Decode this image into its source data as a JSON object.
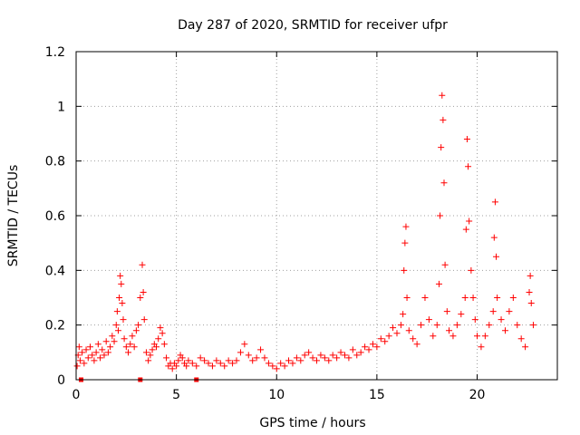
{
  "chart_data": {
    "type": "scatter",
    "title": "Day 287 of 2020, SRMTID for receiver ufpr",
    "xlabel": "GPS time / hours",
    "ylabel": "SRMTID / TECUs",
    "xlim": [
      0,
      24
    ],
    "ylim": [
      0,
      1.2
    ],
    "xticks": [
      0,
      5,
      10,
      15,
      20
    ],
    "xtick_labels": [
      "0",
      "5",
      "10",
      "15",
      "20"
    ],
    "yticks": [
      0,
      0.2,
      0.4,
      0.6,
      0.8,
      1.0,
      1.2
    ],
    "ytick_labels": [
      "0",
      "0.2",
      "0.4",
      "0.6",
      "0.8",
      "1",
      "1.2"
    ],
    "grid": true,
    "marker": "+",
    "color": "#ff0000",
    "baseline_markers": [
      {
        "x": 0.25,
        "y": 0
      },
      {
        "x": 3.2,
        "y": 0
      },
      {
        "x": 6.0,
        "y": 0
      }
    ],
    "series": [
      {
        "name": "SRMTID",
        "points": [
          [
            0.05,
            0.05
          ],
          [
            0.1,
            0.09
          ],
          [
            0.15,
            0.12
          ],
          [
            0.2,
            0.07
          ],
          [
            0.3,
            0.1
          ],
          [
            0.4,
            0.06
          ],
          [
            0.5,
            0.11
          ],
          [
            0.6,
            0.08
          ],
          [
            0.7,
            0.12
          ],
          [
            0.8,
            0.09
          ],
          [
            0.9,
            0.07
          ],
          [
            1.0,
            0.1
          ],
          [
            1.1,
            0.13
          ],
          [
            1.2,
            0.08
          ],
          [
            1.3,
            0.11
          ],
          [
            1.4,
            0.09
          ],
          [
            1.5,
            0.14
          ],
          [
            1.6,
            0.1
          ],
          [
            1.7,
            0.12
          ],
          [
            1.8,
            0.16
          ],
          [
            1.9,
            0.14
          ],
          [
            2.0,
            0.2
          ],
          [
            2.05,
            0.25
          ],
          [
            2.1,
            0.18
          ],
          [
            2.15,
            0.3
          ],
          [
            2.2,
            0.38
          ],
          [
            2.25,
            0.35
          ],
          [
            2.3,
            0.28
          ],
          [
            2.35,
            0.22
          ],
          [
            2.4,
            0.15
          ],
          [
            2.5,
            0.12
          ],
          [
            2.6,
            0.1
          ],
          [
            2.7,
            0.13
          ],
          [
            2.8,
            0.16
          ],
          [
            2.9,
            0.12
          ],
          [
            3.0,
            0.18
          ],
          [
            3.1,
            0.2
          ],
          [
            3.2,
            0.3
          ],
          [
            3.3,
            0.42
          ],
          [
            3.35,
            0.32
          ],
          [
            3.4,
            0.22
          ],
          [
            3.5,
            0.1
          ],
          [
            3.6,
            0.07
          ],
          [
            3.7,
            0.09
          ],
          [
            3.8,
            0.11
          ],
          [
            3.9,
            0.13
          ],
          [
            4.0,
            0.12
          ],
          [
            4.1,
            0.15
          ],
          [
            4.2,
            0.19
          ],
          [
            4.3,
            0.17
          ],
          [
            4.4,
            0.13
          ],
          [
            4.5,
            0.08
          ],
          [
            4.6,
            0.05
          ],
          [
            4.7,
            0.06
          ],
          [
            4.8,
            0.04
          ],
          [
            4.9,
            0.06
          ],
          [
            5.0,
            0.05
          ],
          [
            5.1,
            0.07
          ],
          [
            5.2,
            0.09
          ],
          [
            5.3,
            0.08
          ],
          [
            5.4,
            0.06
          ],
          [
            5.5,
            0.05
          ],
          [
            5.6,
            0.07
          ],
          [
            5.8,
            0.06
          ],
          [
            6.0,
            0.05
          ],
          [
            6.2,
            0.08
          ],
          [
            6.4,
            0.07
          ],
          [
            6.6,
            0.06
          ],
          [
            6.8,
            0.05
          ],
          [
            7.0,
            0.07
          ],
          [
            7.2,
            0.06
          ],
          [
            7.4,
            0.05
          ],
          [
            7.6,
            0.07
          ],
          [
            7.8,
            0.06
          ],
          [
            8.0,
            0.07
          ],
          [
            8.2,
            0.1
          ],
          [
            8.4,
            0.13
          ],
          [
            8.6,
            0.09
          ],
          [
            8.8,
            0.07
          ],
          [
            9.0,
            0.08
          ],
          [
            9.2,
            0.11
          ],
          [
            9.4,
            0.08
          ],
          [
            9.6,
            0.06
          ],
          [
            9.8,
            0.05
          ],
          [
            10.0,
            0.04
          ],
          [
            10.2,
            0.06
          ],
          [
            10.4,
            0.05
          ],
          [
            10.6,
            0.07
          ],
          [
            10.8,
            0.06
          ],
          [
            11.0,
            0.08
          ],
          [
            11.2,
            0.07
          ],
          [
            11.4,
            0.09
          ],
          [
            11.6,
            0.1
          ],
          [
            11.8,
            0.08
          ],
          [
            12.0,
            0.07
          ],
          [
            12.2,
            0.09
          ],
          [
            12.4,
            0.08
          ],
          [
            12.6,
            0.07
          ],
          [
            12.8,
            0.09
          ],
          [
            13.0,
            0.08
          ],
          [
            13.2,
            0.1
          ],
          [
            13.4,
            0.09
          ],
          [
            13.6,
            0.08
          ],
          [
            13.8,
            0.11
          ],
          [
            14.0,
            0.09
          ],
          [
            14.2,
            0.1
          ],
          [
            14.4,
            0.12
          ],
          [
            14.6,
            0.11
          ],
          [
            14.8,
            0.13
          ],
          [
            15.0,
            0.12
          ],
          [
            15.2,
            0.15
          ],
          [
            15.4,
            0.14
          ],
          [
            15.6,
            0.16
          ],
          [
            15.8,
            0.19
          ],
          [
            16.0,
            0.17
          ],
          [
            16.2,
            0.2
          ],
          [
            16.3,
            0.24
          ],
          [
            16.35,
            0.4
          ],
          [
            16.4,
            0.5
          ],
          [
            16.45,
            0.56
          ],
          [
            16.5,
            0.3
          ],
          [
            16.6,
            0.18
          ],
          [
            16.8,
            0.15
          ],
          [
            17.0,
            0.13
          ],
          [
            17.2,
            0.2
          ],
          [
            17.4,
            0.3
          ],
          [
            17.6,
            0.22
          ],
          [
            17.8,
            0.16
          ],
          [
            18.0,
            0.2
          ],
          [
            18.1,
            0.35
          ],
          [
            18.15,
            0.6
          ],
          [
            18.2,
            0.85
          ],
          [
            18.25,
            1.04
          ],
          [
            18.3,
            0.95
          ],
          [
            18.35,
            0.72
          ],
          [
            18.4,
            0.42
          ],
          [
            18.5,
            0.25
          ],
          [
            18.6,
            0.18
          ],
          [
            18.8,
            0.16
          ],
          [
            19.0,
            0.2
          ],
          [
            19.2,
            0.24
          ],
          [
            19.4,
            0.3
          ],
          [
            19.45,
            0.55
          ],
          [
            19.5,
            0.88
          ],
          [
            19.55,
            0.78
          ],
          [
            19.6,
            0.58
          ],
          [
            19.7,
            0.4
          ],
          [
            19.8,
            0.3
          ],
          [
            19.9,
            0.22
          ],
          [
            20.0,
            0.16
          ],
          [
            20.2,
            0.12
          ],
          [
            20.4,
            0.16
          ],
          [
            20.6,
            0.2
          ],
          [
            20.8,
            0.25
          ],
          [
            20.85,
            0.52
          ],
          [
            20.9,
            0.65
          ],
          [
            20.95,
            0.45
          ],
          [
            21.0,
            0.3
          ],
          [
            21.2,
            0.22
          ],
          [
            21.4,
            0.18
          ],
          [
            21.6,
            0.25
          ],
          [
            21.8,
            0.3
          ],
          [
            22.0,
            0.2
          ],
          [
            22.2,
            0.15
          ],
          [
            22.4,
            0.12
          ],
          [
            22.6,
            0.32
          ],
          [
            22.65,
            0.38
          ],
          [
            22.7,
            0.28
          ],
          [
            22.8,
            0.2
          ]
        ]
      }
    ]
  }
}
